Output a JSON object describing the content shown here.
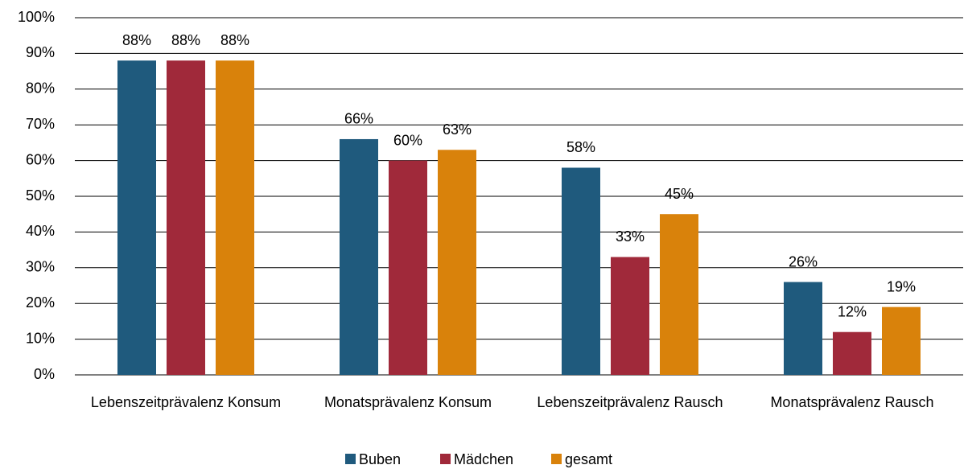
{
  "chart_data": {
    "type": "bar",
    "categories": [
      "Lebenszeitprävalenz Konsum",
      "Monatsprävalenz Konsum",
      "Lebenszeitprävalenz Rausch",
      "Monatsprävalenz Rausch"
    ],
    "series": [
      {
        "name": "Buben",
        "color": "#1f5a7d",
        "values": [
          88,
          66,
          58,
          26
        ],
        "value_labels": [
          "88%",
          "66%",
          "58%",
          "26%"
        ]
      },
      {
        "name": "Mädchen",
        "color": "#a0293a",
        "values": [
          88,
          60,
          33,
          12
        ],
        "value_labels": [
          "88%",
          "60%",
          "33%",
          "12%"
        ]
      },
      {
        "name": "gesamt",
        "color": "#d9820b",
        "values": [
          88,
          63,
          45,
          19
        ],
        "value_labels": [
          "88%",
          "63%",
          "45%",
          "19%"
        ]
      }
    ],
    "ylim": [
      0,
      100
    ],
    "yticks": [
      {
        "value": 0,
        "label": "0%"
      },
      {
        "value": 10,
        "label": "10%"
      },
      {
        "value": 20,
        "label": "20%"
      },
      {
        "value": 30,
        "label": "30%"
      },
      {
        "value": 40,
        "label": "40%"
      },
      {
        "value": 50,
        "label": "50%"
      },
      {
        "value": 60,
        "label": "60%"
      },
      {
        "value": 70,
        "label": "70%"
      },
      {
        "value": 80,
        "label": "80%"
      },
      {
        "value": 90,
        "label": "90%"
      },
      {
        "value": 100,
        "label": "100%"
      }
    ],
    "grid": true,
    "legend": "bottom"
  }
}
